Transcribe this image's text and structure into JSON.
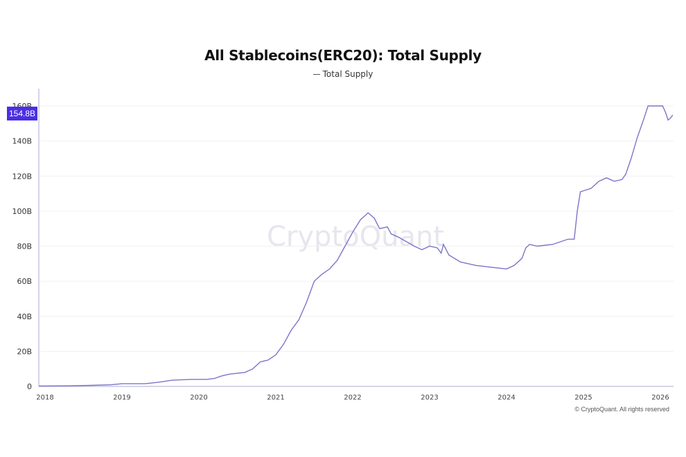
{
  "chart_data": {
    "type": "line",
    "title": "All Stablecoins(ERC20): Total Supply",
    "legend": {
      "position": "top-center",
      "entries": [
        "Total Supply"
      ]
    },
    "watermark": "CryptoQuant",
    "copyright": "© CryptoQuant. All rights reserved",
    "current_value_label": "154.8B",
    "line_color": "#7b74c9",
    "badge_color": "#4a2ee6",
    "grid": true,
    "ylim": [
      0,
      170
    ],
    "y_unit": "B",
    "y_ticks": [
      "0",
      "20B",
      "40B",
      "60B",
      "80B",
      "100B",
      "120B",
      "140B",
      "160B"
    ],
    "x_ticks": [
      "2018",
      "2019",
      "2020",
      "2021",
      "2022",
      "2023",
      "2024",
      "2025",
      "2026"
    ],
    "series": [
      {
        "name": "Total Supply",
        "x": [
          2017.92,
          2018.3,
          2018.6,
          2018.85,
          2019.0,
          2019.3,
          2019.5,
          2019.65,
          2019.9,
          2020.1,
          2020.2,
          2020.3,
          2020.4,
          2020.6,
          2020.7,
          2020.8,
          2020.9,
          2021.0,
          2021.1,
          2021.2,
          2021.3,
          2021.4,
          2021.5,
          2021.6,
          2021.7,
          2021.8,
          2021.9,
          2022.0,
          2022.1,
          2022.2,
          2022.28,
          2022.35,
          2022.45,
          2022.5,
          2022.6,
          2022.8,
          2022.9,
          2023.0,
          2023.1,
          2023.15,
          2023.18,
          2023.25,
          2023.4,
          2023.6,
          2023.8,
          2024.0,
          2024.1,
          2024.2,
          2024.25,
          2024.3,
          2024.4,
          2024.6,
          2024.8,
          2024.88,
          2024.92,
          2024.96,
          2025.1,
          2025.2,
          2025.3,
          2025.4,
          2025.5,
          2025.55,
          2025.62,
          2025.7,
          2025.78,
          2025.84,
          2025.95,
          2026.03,
          2026.07,
          2026.1,
          2026.13,
          2026.16
        ],
        "y": [
          0.2,
          0.3,
          0.6,
          0.9,
          1.5,
          1.5,
          2.5,
          3.5,
          4,
          4,
          4.5,
          6,
          7,
          8,
          10,
          14,
          15,
          18,
          24,
          32,
          38,
          48,
          60,
          64,
          67,
          72,
          80,
          88,
          95,
          99,
          96,
          90,
          91,
          87,
          85,
          80,
          78,
          80,
          79,
          76,
          81,
          75,
          71,
          69,
          68,
          67,
          69,
          73,
          79,
          81,
          80,
          81,
          84,
          84,
          100,
          111,
          113,
          117,
          119,
          117,
          118,
          121,
          130,
          142,
          152,
          160,
          160,
          160,
          156,
          152,
          153,
          154.8
        ]
      }
    ]
  }
}
